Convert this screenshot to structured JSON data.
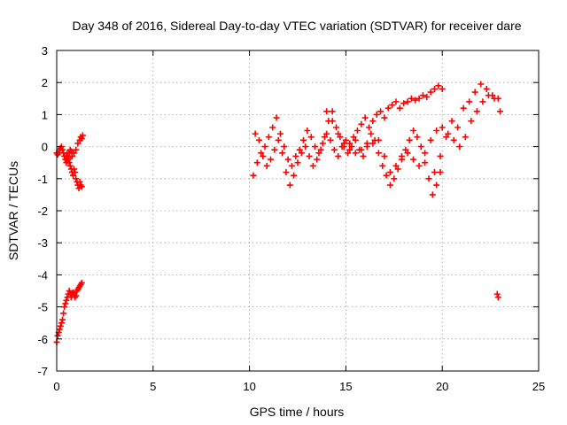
{
  "chart_data": {
    "type": "scatter",
    "title": "Day 348 of 2016, Sidereal Day-to-day VTEC variation (SDTVAR) for receiver dare",
    "xlabel": "GPS time / hours",
    "ylabel": "SDTVAR / TECUs",
    "xlim": [
      0,
      25
    ],
    "ylim": [
      -7,
      3
    ],
    "xticks": [
      0,
      5,
      10,
      15,
      20,
      25
    ],
    "yticks": [
      3,
      2,
      1,
      0,
      -1,
      -2,
      -3,
      -4,
      -5,
      -6,
      -7
    ],
    "grid": true,
    "marker": "+",
    "color": "#ff0000",
    "series": [
      {
        "name": "early-segment-upper",
        "x": [
          0.0,
          0.05,
          0.1,
          0.15,
          0.2,
          0.25,
          0.3,
          0.35,
          0.4,
          0.45,
          0.5,
          0.55,
          0.6,
          0.65,
          0.7,
          0.75,
          0.8,
          0.85,
          0.9,
          0.95,
          1.0,
          1.05,
          1.1,
          1.15,
          1.2,
          1.25,
          1.3,
          1.2,
          1.25,
          1.3,
          1.35,
          0.5,
          0.55,
          0.6,
          0.65,
          0.7,
          0.75,
          0.8,
          0.9,
          1.0,
          1.1
        ],
        "y": [
          -0.2,
          -0.25,
          -0.2,
          -0.1,
          -0.05,
          0.0,
          -0.1,
          -0.2,
          -0.3,
          -0.4,
          -0.3,
          -0.2,
          -0.4,
          -0.5,
          -0.6,
          -0.7,
          -0.8,
          -0.9,
          -0.7,
          -0.8,
          -1.0,
          -1.1,
          -1.2,
          -1.3,
          -1.1,
          -1.2,
          -1.25,
          0.2,
          0.3,
          0.25,
          0.35,
          -0.5,
          -0.45,
          -0.35,
          -0.2,
          -0.1,
          -0.15,
          -0.3,
          -0.2,
          -0.1,
          0.1
        ]
      },
      {
        "name": "early-segment-lower",
        "x": [
          0.0,
          0.05,
          0.1,
          0.15,
          0.2,
          0.25,
          0.3,
          0.35,
          0.4,
          0.45,
          0.5,
          0.55,
          0.6,
          0.65,
          0.7,
          0.75,
          0.8,
          0.85,
          0.9,
          0.95,
          1.0,
          1.05,
          1.1,
          1.15,
          1.2,
          1.25,
          1.3
        ],
        "y": [
          -6.1,
          -5.9,
          -5.8,
          -5.7,
          -5.6,
          -5.5,
          -5.4,
          -5.2,
          -5.0,
          -4.9,
          -4.8,
          -4.7,
          -4.6,
          -4.5,
          -4.6,
          -4.7,
          -4.6,
          -4.55,
          -4.6,
          -4.7,
          -4.65,
          -4.5,
          -4.45,
          -4.4,
          -4.35,
          -4.3,
          -4.25
        ]
      },
      {
        "name": "main-track-a",
        "x": [
          10.2,
          10.4,
          10.6,
          10.8,
          11.0,
          11.2,
          11.4,
          11.6,
          11.8,
          12.0,
          12.2,
          12.4,
          12.6,
          12.8,
          13.0,
          13.2,
          13.4,
          13.6,
          13.8,
          14.0,
          14.2,
          14.4,
          14.6,
          14.8,
          15.0,
          15.2,
          15.4,
          15.6,
          15.8,
          16.0,
          16.2,
          16.4,
          16.6,
          16.8,
          17.0,
          17.2,
          17.4,
          17.6,
          17.8,
          18.0,
          18.2,
          18.4,
          18.6,
          18.8,
          19.0,
          19.2,
          19.4,
          19.6,
          19.8,
          20.0
        ],
        "y": [
          -0.9,
          -0.5,
          -0.2,
          0.0,
          0.3,
          0.6,
          0.9,
          0.4,
          0.0,
          -0.4,
          -0.6,
          -0.3,
          -0.1,
          0.2,
          0.5,
          0.3,
          0.0,
          -0.2,
          0.1,
          0.4,
          0.2,
          -0.1,
          -0.3,
          0.0,
          0.2,
          0.1,
          0.3,
          0.5,
          0.7,
          0.9,
          0.6,
          0.8,
          1.0,
          1.1,
          0.9,
          1.2,
          1.3,
          1.4,
          1.2,
          1.35,
          1.4,
          1.5,
          1.45,
          1.5,
          1.6,
          1.55,
          1.7,
          1.8,
          1.9,
          1.8
        ]
      },
      {
        "name": "main-track-b",
        "x": [
          10.3,
          10.5,
          10.7,
          10.9,
          11.1,
          11.3,
          11.5,
          11.7,
          11.9,
          12.1,
          12.3,
          12.5,
          12.7,
          12.9,
          13.1,
          13.3,
          13.5,
          13.7,
          13.9,
          14.1,
          14.3,
          14.5,
          14.7,
          14.9,
          15.1,
          15.3,
          15.5,
          15.7,
          15.9,
          16.1,
          16.3,
          16.5,
          16.7,
          16.9,
          17.1,
          17.3,
          17.5,
          17.7,
          17.9,
          18.1,
          18.3,
          18.5,
          18.7,
          18.9,
          19.1,
          19.3,
          19.5,
          19.7,
          19.9
        ],
        "y": [
          0.4,
          0.2,
          -0.3,
          -0.6,
          -0.4,
          -0.1,
          0.2,
          -0.2,
          -0.8,
          -1.2,
          -0.9,
          -0.5,
          -0.2,
          0.0,
          -0.3,
          -0.6,
          -0.4,
          -0.1,
          0.3,
          0.8,
          1.1,
          0.6,
          0.3,
          0.0,
          -0.2,
          0.0,
          0.2,
          -0.1,
          -0.3,
          0.1,
          0.4,
          0.2,
          -0.2,
          -0.6,
          -0.9,
          -1.2,
          -1.0,
          -0.7,
          -0.4,
          -0.1,
          0.2,
          0.5,
          0.3,
          0.0,
          -0.5,
          -1.0,
          -1.5,
          -1.2,
          -0.8
        ]
      },
      {
        "name": "main-track-c",
        "x": [
          14.0,
          14.3,
          14.6,
          14.9,
          15.2,
          15.5,
          15.8,
          16.1,
          16.4,
          16.7,
          17.0,
          17.3,
          17.6,
          17.9,
          18.2,
          18.5,
          18.8,
          19.1,
          19.4,
          19.7,
          20.0,
          20.3,
          20.6,
          20.9,
          21.2,
          21.5,
          21.8,
          22.1,
          22.4,
          22.7,
          23.0
        ],
        "y": [
          1.1,
          0.8,
          0.4,
          0.1,
          -0.1,
          -0.2,
          -0.1,
          0.0,
          0.1,
          0.2,
          -0.3,
          -0.8,
          -0.6,
          -0.3,
          -0.2,
          -0.4,
          -0.6,
          -0.2,
          0.2,
          0.5,
          0.6,
          0.4,
          0.2,
          0.0,
          0.3,
          0.8,
          1.1,
          1.4,
          1.6,
          1.5,
          1.1
        ]
      },
      {
        "name": "late-track-d",
        "x": [
          19.6,
          19.9,
          20.2,
          20.5,
          20.8,
          21.1,
          21.4,
          21.7,
          22.0,
          22.3,
          22.6,
          22.9
        ],
        "y": [
          -0.8,
          -0.3,
          0.3,
          0.8,
          0.6,
          1.2,
          1.4,
          1.7,
          1.95,
          1.8,
          1.6,
          1.5
        ]
      },
      {
        "name": "outlier",
        "x": [
          22.85,
          22.9
        ],
        "y": [
          -4.6,
          -4.7
        ]
      }
    ]
  }
}
